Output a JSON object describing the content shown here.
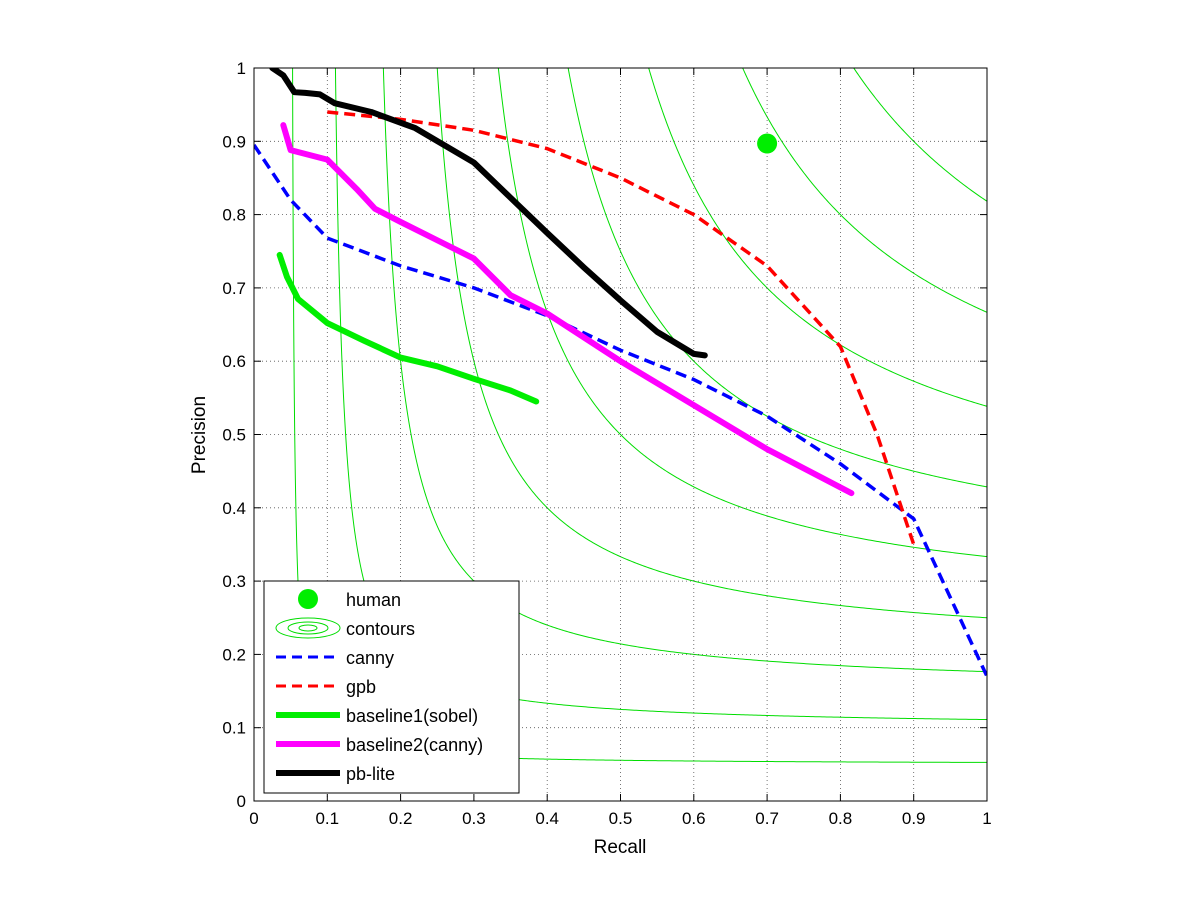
{
  "chart_data": {
    "type": "line",
    "title": "",
    "xlabel": "Recall",
    "ylabel": "Precision",
    "xlim": [
      0,
      1
    ],
    "ylim": [
      0,
      1
    ],
    "xticks": [
      "0",
      "0.1",
      "0.2",
      "0.3",
      "0.4",
      "0.5",
      "0.6",
      "0.7",
      "0.8",
      "0.9",
      "1"
    ],
    "yticks": [
      "0",
      "0.1",
      "0.2",
      "0.3",
      "0.4",
      "0.5",
      "0.6",
      "0.7",
      "0.8",
      "0.9",
      "1"
    ],
    "grid": true,
    "legend_position": "bottom-left",
    "contour_fmeasures": [
      0.1,
      0.2,
      0.3,
      0.4,
      0.5,
      0.6,
      0.7,
      0.8,
      0.9
    ],
    "human": {
      "name": "human",
      "x": 0.7,
      "y": 0.897,
      "color": "#00ee00"
    },
    "contours": {
      "name": "contours",
      "color": "#00dd00"
    },
    "series": [
      {
        "name": "canny",
        "color": "#0000ff",
        "style": "dashed",
        "points": [
          [
            0.0,
            0.895
          ],
          [
            0.05,
            0.82
          ],
          [
            0.1,
            0.768
          ],
          [
            0.2,
            0.73
          ],
          [
            0.3,
            0.7
          ],
          [
            0.4,
            0.662
          ],
          [
            0.5,
            0.615
          ],
          [
            0.6,
            0.575
          ],
          [
            0.7,
            0.525
          ],
          [
            0.8,
            0.46
          ],
          [
            0.9,
            0.385
          ],
          [
            1.0,
            0.17
          ]
        ]
      },
      {
        "name": "gpb",
        "color": "#ff0000",
        "style": "dashed",
        "points": [
          [
            0.1,
            0.94
          ],
          [
            0.2,
            0.93
          ],
          [
            0.3,
            0.915
          ],
          [
            0.4,
            0.89
          ],
          [
            0.5,
            0.85
          ],
          [
            0.6,
            0.8
          ],
          [
            0.7,
            0.73
          ],
          [
            0.8,
            0.62
          ],
          [
            0.85,
            0.5
          ],
          [
            0.9,
            0.35
          ]
        ]
      },
      {
        "name": "baseline1(sobel)",
        "color": "#00ee00",
        "style": "solid",
        "points": [
          [
            0.035,
            0.745
          ],
          [
            0.045,
            0.715
          ],
          [
            0.06,
            0.685
          ],
          [
            0.1,
            0.652
          ],
          [
            0.15,
            0.628
          ],
          [
            0.2,
            0.605
          ],
          [
            0.25,
            0.593
          ],
          [
            0.3,
            0.576
          ],
          [
            0.35,
            0.56
          ],
          [
            0.385,
            0.545
          ]
        ]
      },
      {
        "name": "baseline2(canny)",
        "color": "#ff00ff",
        "style": "solid",
        "points": [
          [
            0.04,
            0.922
          ],
          [
            0.05,
            0.888
          ],
          [
            0.1,
            0.875
          ],
          [
            0.14,
            0.835
          ],
          [
            0.165,
            0.808
          ],
          [
            0.2,
            0.79
          ],
          [
            0.25,
            0.765
          ],
          [
            0.3,
            0.74
          ],
          [
            0.35,
            0.69
          ],
          [
            0.4,
            0.665
          ],
          [
            0.5,
            0.6
          ],
          [
            0.6,
            0.54
          ],
          [
            0.7,
            0.48
          ],
          [
            0.815,
            0.42
          ]
        ]
      },
      {
        "name": "pb-lite",
        "color": "#000000",
        "style": "solid",
        "points": [
          [
            0.025,
            1.0
          ],
          [
            0.04,
            0.99
          ],
          [
            0.055,
            0.967
          ],
          [
            0.07,
            0.966
          ],
          [
            0.09,
            0.964
          ],
          [
            0.11,
            0.952
          ],
          [
            0.16,
            0.94
          ],
          [
            0.22,
            0.918
          ],
          [
            0.3,
            0.871
          ],
          [
            0.35,
            0.823
          ],
          [
            0.4,
            0.775
          ],
          [
            0.45,
            0.728
          ],
          [
            0.5,
            0.683
          ],
          [
            0.55,
            0.64
          ],
          [
            0.6,
            0.61
          ],
          [
            0.615,
            0.608
          ]
        ]
      }
    ]
  }
}
